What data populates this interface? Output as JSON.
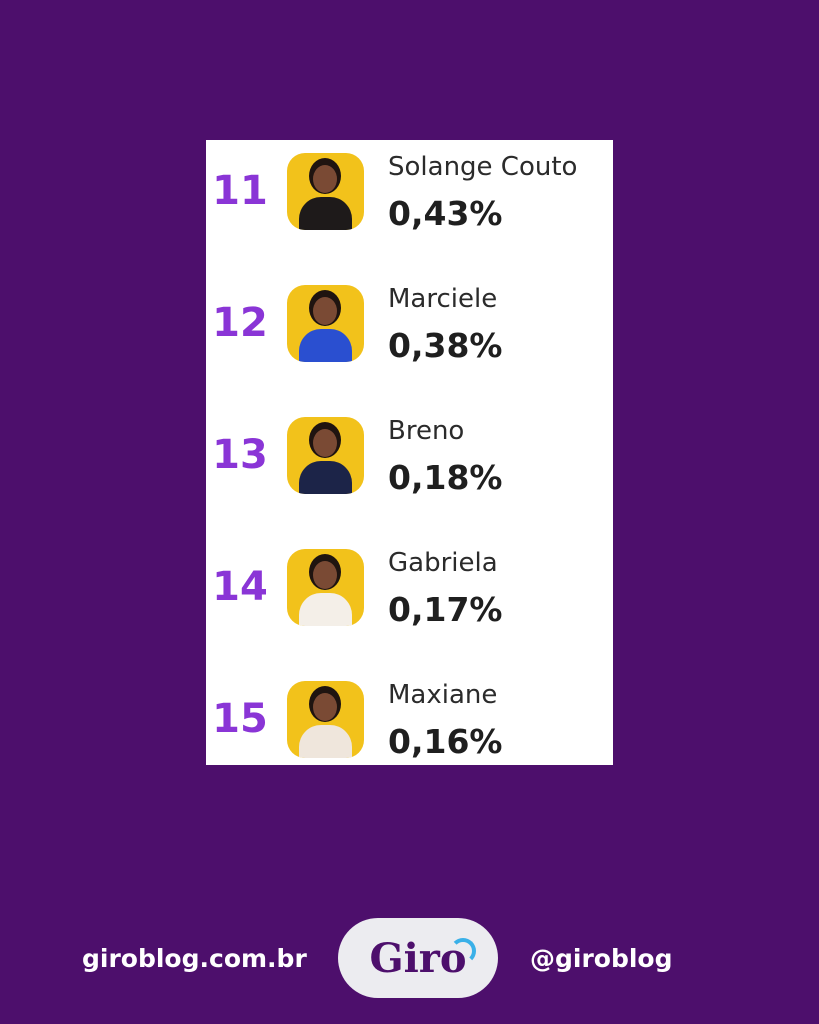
{
  "ranking": [
    {
      "rank": "11",
      "name": "Solange Couto",
      "percent": "0,43%",
      "outfit_color": "#1e1a1a"
    },
    {
      "rank": "12",
      "name": "Marciele",
      "percent": "0,38%",
      "outfit_color": "#2a4fd0"
    },
    {
      "rank": "13",
      "name": "Breno",
      "percent": "0,18%",
      "outfit_color": "#1c2448"
    },
    {
      "rank": "14",
      "name": "Gabriela",
      "percent": "0,17%",
      "outfit_color": "#f4efe8"
    },
    {
      "rank": "15",
      "name": "Maxiane",
      "percent": "0,16%",
      "outfit_color": "#efe6dc"
    }
  ],
  "footer": {
    "website": "giroblog.com.br",
    "logo_text": "Giro",
    "handle": "@giroblog"
  },
  "colors": {
    "background": "#4d0f6c",
    "rank": "#8a35d6",
    "avatar_bg": "#f2c21b"
  }
}
